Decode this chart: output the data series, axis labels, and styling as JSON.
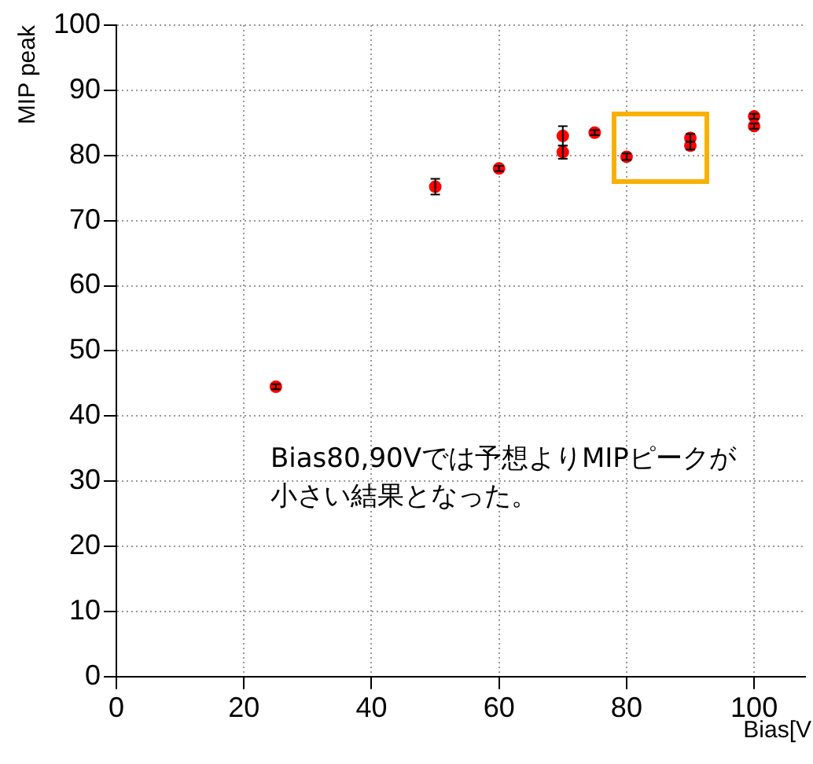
{
  "chart_data": {
    "type": "scatter",
    "xlabel": "Bias[V",
    "ylabel": "MIP peak",
    "xlim": [
      0,
      108
    ],
    "xticks": [
      0,
      20,
      40,
      60,
      80,
      100
    ],
    "ylim": [
      0,
      100
    ],
    "yticks": [
      0,
      10,
      20,
      30,
      40,
      50,
      60,
      70,
      80,
      90,
      100
    ],
    "grid": true,
    "marker": "circle",
    "series": [
      {
        "color": "#ff0000",
        "x": [
          25,
          50,
          60,
          70,
          70,
          75,
          80,
          90,
          90,
          100,
          100
        ],
        "values": [
          44.5,
          75.2,
          78,
          83,
          80.5,
          83.5,
          79.8,
          82.7,
          81.5,
          86,
          84.5
        ],
        "errors": [
          0.4,
          1.2,
          0.4,
          1.5,
          1,
          0.4,
          0.5,
          0.6,
          0.6,
          0.4,
          0.4
        ]
      }
    ],
    "annotations": [
      "Bias80,90Vでは予想よりMIPピークが小さい結果となった。"
    ]
  }
}
